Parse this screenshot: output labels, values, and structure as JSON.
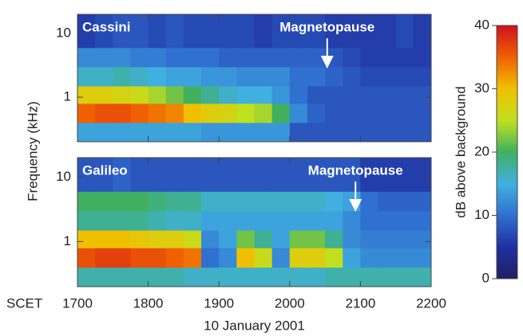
{
  "chart_data": [
    {
      "type": "heatmap",
      "label": "Cassini",
      "ylabel": "Frequency (kHz)",
      "annotation": {
        "text": "Magnetopause",
        "x": 2053
      },
      "xlim": [
        1700,
        2200
      ],
      "xticks": [
        1700,
        1800,
        1900,
        2000,
        2100,
        2200
      ],
      "show_xtick_labels": false,
      "ylim": [
        0.2,
        20
      ],
      "yticks": [
        1,
        10
      ],
      "ylog": true,
      "x_edges": [
        1700,
        1725,
        1750,
        1775,
        1800,
        1825,
        1850,
        1875,
        1900,
        1925,
        1950,
        1975,
        2000,
        2025,
        2050,
        2075,
        2100,
        2125,
        2150,
        2175,
        2200
      ],
      "y_edges": [
        0.2,
        0.4,
        0.8,
        1.5,
        3,
        6,
        20
      ],
      "z": [
        [
          14,
          14,
          14,
          14,
          14,
          14,
          14,
          13,
          13,
          13,
          13,
          13,
          8,
          8,
          8,
          8,
          8,
          8,
          8,
          8
        ],
        [
          35,
          36,
          36,
          35,
          34,
          33,
          30,
          28,
          27,
          25,
          24,
          20,
          12,
          9,
          8,
          8,
          8,
          8,
          8,
          8
        ],
        [
          28,
          28,
          27,
          26,
          24,
          22,
          20,
          18,
          16,
          15,
          15,
          13,
          10,
          8,
          8,
          8,
          8,
          8,
          8,
          8
        ],
        [
          16,
          16,
          17,
          16,
          15,
          14,
          14,
          13,
          13,
          12,
          12,
          12,
          10,
          10,
          9,
          8,
          7,
          7,
          7,
          7
        ],
        [
          12,
          12,
          12,
          11,
          11,
          10,
          10,
          10,
          9,
          9,
          9,
          9,
          9,
          9,
          8,
          7,
          6,
          6,
          6,
          6
        ],
        [
          6,
          7,
          8,
          8,
          7,
          8,
          7,
          7,
          7,
          7,
          6,
          7,
          7,
          7,
          6,
          6,
          6,
          6,
          7,
          6
        ]
      ]
    },
    {
      "type": "heatmap",
      "label": "Galileo",
      "xlabel": "10 January 2001",
      "xtick_prefix": "SCET",
      "annotation": {
        "text": "Magnetopause",
        "x": 2093
      },
      "xlim": [
        1700,
        2200
      ],
      "xticks": [
        1700,
        1800,
        1900,
        2000,
        2100,
        2200
      ],
      "show_xtick_labels": true,
      "ylim": [
        0.2,
        20
      ],
      "yticks": [
        1,
        10
      ],
      "ylog": true,
      "x_edges": [
        1700,
        1725,
        1750,
        1775,
        1800,
        1825,
        1850,
        1875,
        1900,
        1925,
        1950,
        1975,
        2000,
        2025,
        2050,
        2075,
        2100,
        2125,
        2150,
        2175,
        2200
      ],
      "y_edges": [
        0.2,
        0.4,
        0.8,
        1.5,
        3,
        6,
        20
      ],
      "z": [
        [
          17,
          17,
          17,
          17,
          17,
          17,
          16,
          16,
          16,
          16,
          16,
          16,
          16,
          16,
          17,
          17,
          17,
          17,
          17,
          17
        ],
        [
          36,
          37,
          37,
          36,
          36,
          35,
          34,
          10,
          12,
          30,
          26,
          12,
          28,
          28,
          25,
          14,
          12,
          12,
          12,
          12
        ],
        [
          30,
          30,
          30,
          29,
          28,
          28,
          26,
          12,
          14,
          22,
          18,
          14,
          22,
          22,
          18,
          12,
          11,
          11,
          11,
          11
        ],
        [
          18,
          18,
          18,
          18,
          17,
          16,
          16,
          14,
          14,
          14,
          14,
          14,
          14,
          14,
          14,
          12,
          10,
          10,
          10,
          10
        ],
        [
          20,
          20,
          20,
          20,
          19,
          18,
          18,
          16,
          16,
          16,
          16,
          16,
          16,
          16,
          15,
          14,
          10,
          9,
          9,
          9
        ],
        [
          8,
          8,
          9,
          8,
          8,
          8,
          8,
          8,
          8,
          8,
          8,
          8,
          8,
          8,
          8,
          8,
          6,
          6,
          6,
          6
        ]
      ]
    },
    {
      "type": "colorbar",
      "label": "dB above background",
      "zlim": [
        0,
        40
      ],
      "ticks": [
        0,
        10,
        20,
        30,
        40
      ],
      "colors": [
        "#202060",
        "#2030a0",
        "#3070d0",
        "#40b0e0",
        "#40b060",
        "#c0e020",
        "#f0c000",
        "#f06000",
        "#d01020"
      ]
    }
  ]
}
